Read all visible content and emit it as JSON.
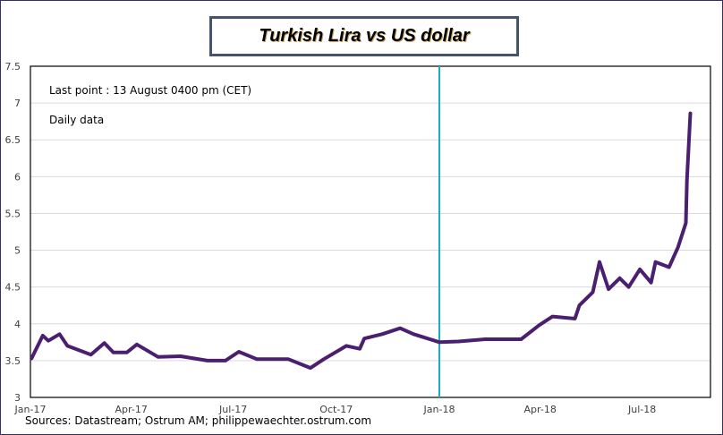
{
  "chart_data": {
    "type": "line",
    "title": "Turkish Lira  vs US dollar",
    "xlabel": "",
    "ylabel": "",
    "ylim": [
      3,
      7.5
    ],
    "yticks": [
      "3",
      "3.5",
      "4",
      "4.5",
      "5",
      "5.5",
      "6",
      "6.5",
      "7",
      "7.5"
    ],
    "xlim": [
      "2017-01-01",
      "2018-08-31"
    ],
    "xticks": [
      {
        "date": "2017-01-01",
        "label": "Jan-17"
      },
      {
        "date": "2017-04-01",
        "label": "Apr-17"
      },
      {
        "date": "2017-07-01",
        "label": "Jul-17"
      },
      {
        "date": "2017-10-01",
        "label": "Oct-17"
      },
      {
        "date": "2018-01-01",
        "label": "Jan-18"
      },
      {
        "date": "2018-04-01",
        "label": "Apr-18"
      },
      {
        "date": "2018-07-01",
        "label": "Jul-18"
      }
    ],
    "grid": "horizontal",
    "vertical_marker": {
      "date": "2018-01-01",
      "color": "#1aafbf"
    },
    "annotations": [
      "Last point : 13 August 0400  pm (CET)",
      "Daily data"
    ],
    "series": [
      {
        "color": "#4b1f6f",
        "points": [
          [
            "2017-01-02",
            3.53
          ],
          [
            "2017-01-12",
            3.84
          ],
          [
            "2017-01-17",
            3.77
          ],
          [
            "2017-01-27",
            3.86
          ],
          [
            "2017-02-03",
            3.7
          ],
          [
            "2017-02-24",
            3.58
          ],
          [
            "2017-03-08",
            3.74
          ],
          [
            "2017-03-16",
            3.61
          ],
          [
            "2017-03-28",
            3.61
          ],
          [
            "2017-04-06",
            3.72
          ],
          [
            "2017-04-25",
            3.55
          ],
          [
            "2017-05-15",
            3.56
          ],
          [
            "2017-06-08",
            3.5
          ],
          [
            "2017-06-24",
            3.5
          ],
          [
            "2017-07-06",
            3.62
          ],
          [
            "2017-07-22",
            3.52
          ],
          [
            "2017-08-19",
            3.52
          ],
          [
            "2017-09-08",
            3.4
          ],
          [
            "2017-09-20",
            3.52
          ],
          [
            "2017-10-10",
            3.7
          ],
          [
            "2017-10-22",
            3.66
          ],
          [
            "2017-10-26",
            3.8
          ],
          [
            "2017-11-11",
            3.86
          ],
          [
            "2017-11-27",
            3.94
          ],
          [
            "2017-12-09",
            3.86
          ],
          [
            "2018-01-01",
            3.75
          ],
          [
            "2018-01-18",
            3.76
          ],
          [
            "2018-02-11",
            3.79
          ],
          [
            "2018-03-15",
            3.79
          ],
          [
            "2018-03-31",
            3.98
          ],
          [
            "2018-04-12",
            4.1
          ],
          [
            "2018-05-02",
            4.07
          ],
          [
            "2018-05-06",
            4.25
          ],
          [
            "2018-05-18",
            4.43
          ],
          [
            "2018-05-24",
            4.84
          ],
          [
            "2018-06-01",
            4.47
          ],
          [
            "2018-06-11",
            4.62
          ],
          [
            "2018-06-19",
            4.5
          ],
          [
            "2018-06-29",
            4.74
          ],
          [
            "2018-07-09",
            4.56
          ],
          [
            "2018-07-13",
            4.84
          ],
          [
            "2018-07-25",
            4.77
          ],
          [
            "2018-08-02",
            5.04
          ],
          [
            "2018-08-09",
            5.37
          ],
          [
            "2018-08-10",
            5.95
          ],
          [
            "2018-08-13",
            6.86
          ]
        ]
      }
    ]
  },
  "sources": "Sources: Datastream; Ostrum AM; philippewaechter.ostrum.com"
}
